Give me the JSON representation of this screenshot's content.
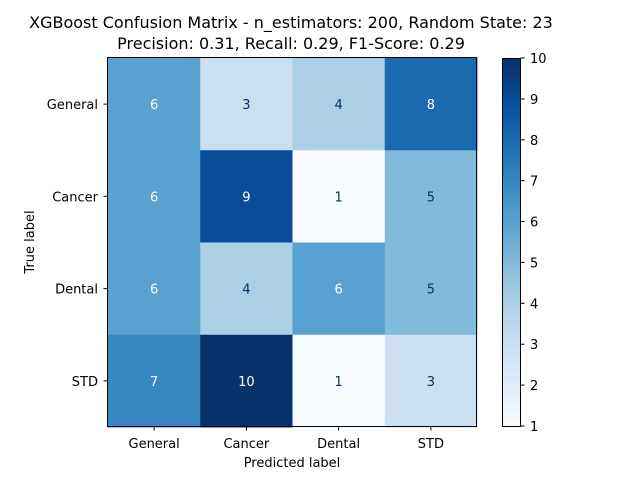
{
  "chart_data": {
    "type": "heatmap",
    "title": "XGBoost Confusion Matrix - n_estimators: 200, Random State: 23",
    "subtitle": "Precision: 0.31, Recall: 0.29, F1-Score: 0.29",
    "xlabel": "Predicted label",
    "ylabel": "True label",
    "x_categories": [
      "General",
      "Cancer",
      "Dental",
      "STD"
    ],
    "y_categories": [
      "General",
      "Cancer",
      "Dental",
      "STD"
    ],
    "values": [
      [
        6,
        3,
        4,
        8
      ],
      [
        6,
        9,
        1,
        5
      ],
      [
        6,
        4,
        6,
        5
      ],
      [
        7,
        10,
        1,
        3
      ]
    ],
    "colormap": "Blues",
    "colorbar": {
      "min": 1,
      "max": 10,
      "ticks": [
        1,
        2,
        3,
        4,
        5,
        6,
        7,
        8,
        9,
        10
      ]
    },
    "text_colors": {
      "light": "#ffffff",
      "dark": "#08306b"
    }
  }
}
